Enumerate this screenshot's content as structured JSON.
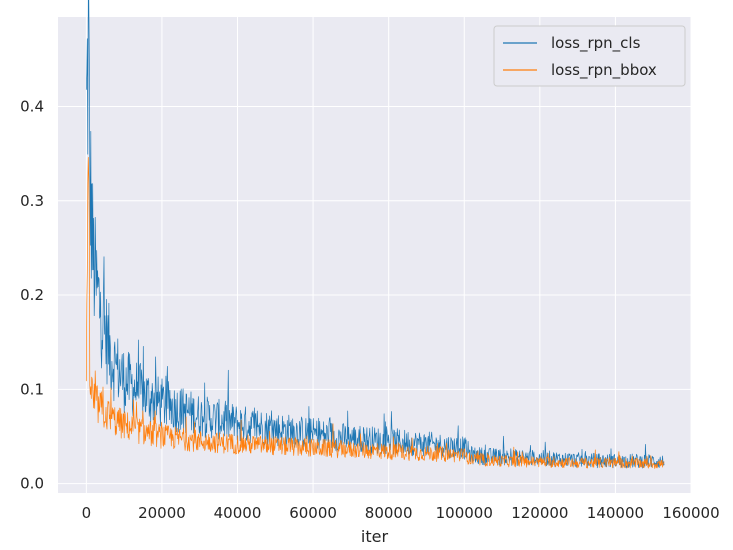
{
  "chart_data": {
    "type": "line",
    "title": "",
    "xlabel": "iter",
    "ylabel": "",
    "xlim": [
      -7500,
      160000
    ],
    "ylim": [
      -0.01,
      0.495
    ],
    "xticks": [
      0,
      20000,
      40000,
      60000,
      80000,
      100000,
      120000,
      140000,
      160000
    ],
    "yticks": [
      0.0,
      0.1,
      0.2,
      0.3,
      0.4
    ],
    "xtick_labels": [
      "0",
      "20000",
      "40000",
      "60000",
      "80000",
      "100000",
      "120000",
      "140000",
      "160000"
    ],
    "ytick_labels": [
      "0.0",
      "0.1",
      "0.2",
      "0.3",
      "0.4"
    ],
    "grid": true,
    "background": "#eaeaf2",
    "legend": {
      "position": "top-right"
    },
    "series": [
      {
        "name": "loss_rpn_cls",
        "color": "#1f77b4",
        "x": [
          0,
          300,
          600,
          900,
          1200,
          1800,
          2500,
          3500,
          5000,
          7000,
          10000,
          15000,
          20000,
          30000,
          40000,
          50000,
          60000,
          70000,
          80000,
          90000,
          100000,
          102000,
          110000,
          120000,
          130000,
          140000,
          150000,
          153000
        ],
        "y": [
          0.38,
          0.43,
          0.47,
          0.32,
          0.3,
          0.24,
          0.21,
          0.19,
          0.16,
          0.13,
          0.11,
          0.095,
          0.085,
          0.072,
          0.064,
          0.058,
          0.053,
          0.048,
          0.045,
          0.042,
          0.038,
          0.03,
          0.028,
          0.027,
          0.025,
          0.024,
          0.024,
          0.023
        ]
      },
      {
        "name": "loss_rpn_bbox",
        "color": "#ff7f0e",
        "x": [
          0,
          300,
          600,
          900,
          1200,
          1800,
          2500,
          3500,
          5000,
          7000,
          10000,
          15000,
          20000,
          30000,
          40000,
          50000,
          60000,
          70000,
          80000,
          90000,
          100000,
          102000,
          110000,
          120000,
          130000,
          140000,
          150000,
          153000
        ],
        "y": [
          0.14,
          0.24,
          0.29,
          0.12,
          0.1,
          0.09,
          0.085,
          0.08,
          0.075,
          0.068,
          0.062,
          0.055,
          0.05,
          0.045,
          0.042,
          0.04,
          0.038,
          0.036,
          0.034,
          0.032,
          0.03,
          0.025,
          0.024,
          0.023,
          0.022,
          0.022,
          0.021,
          0.021
        ]
      }
    ]
  }
}
